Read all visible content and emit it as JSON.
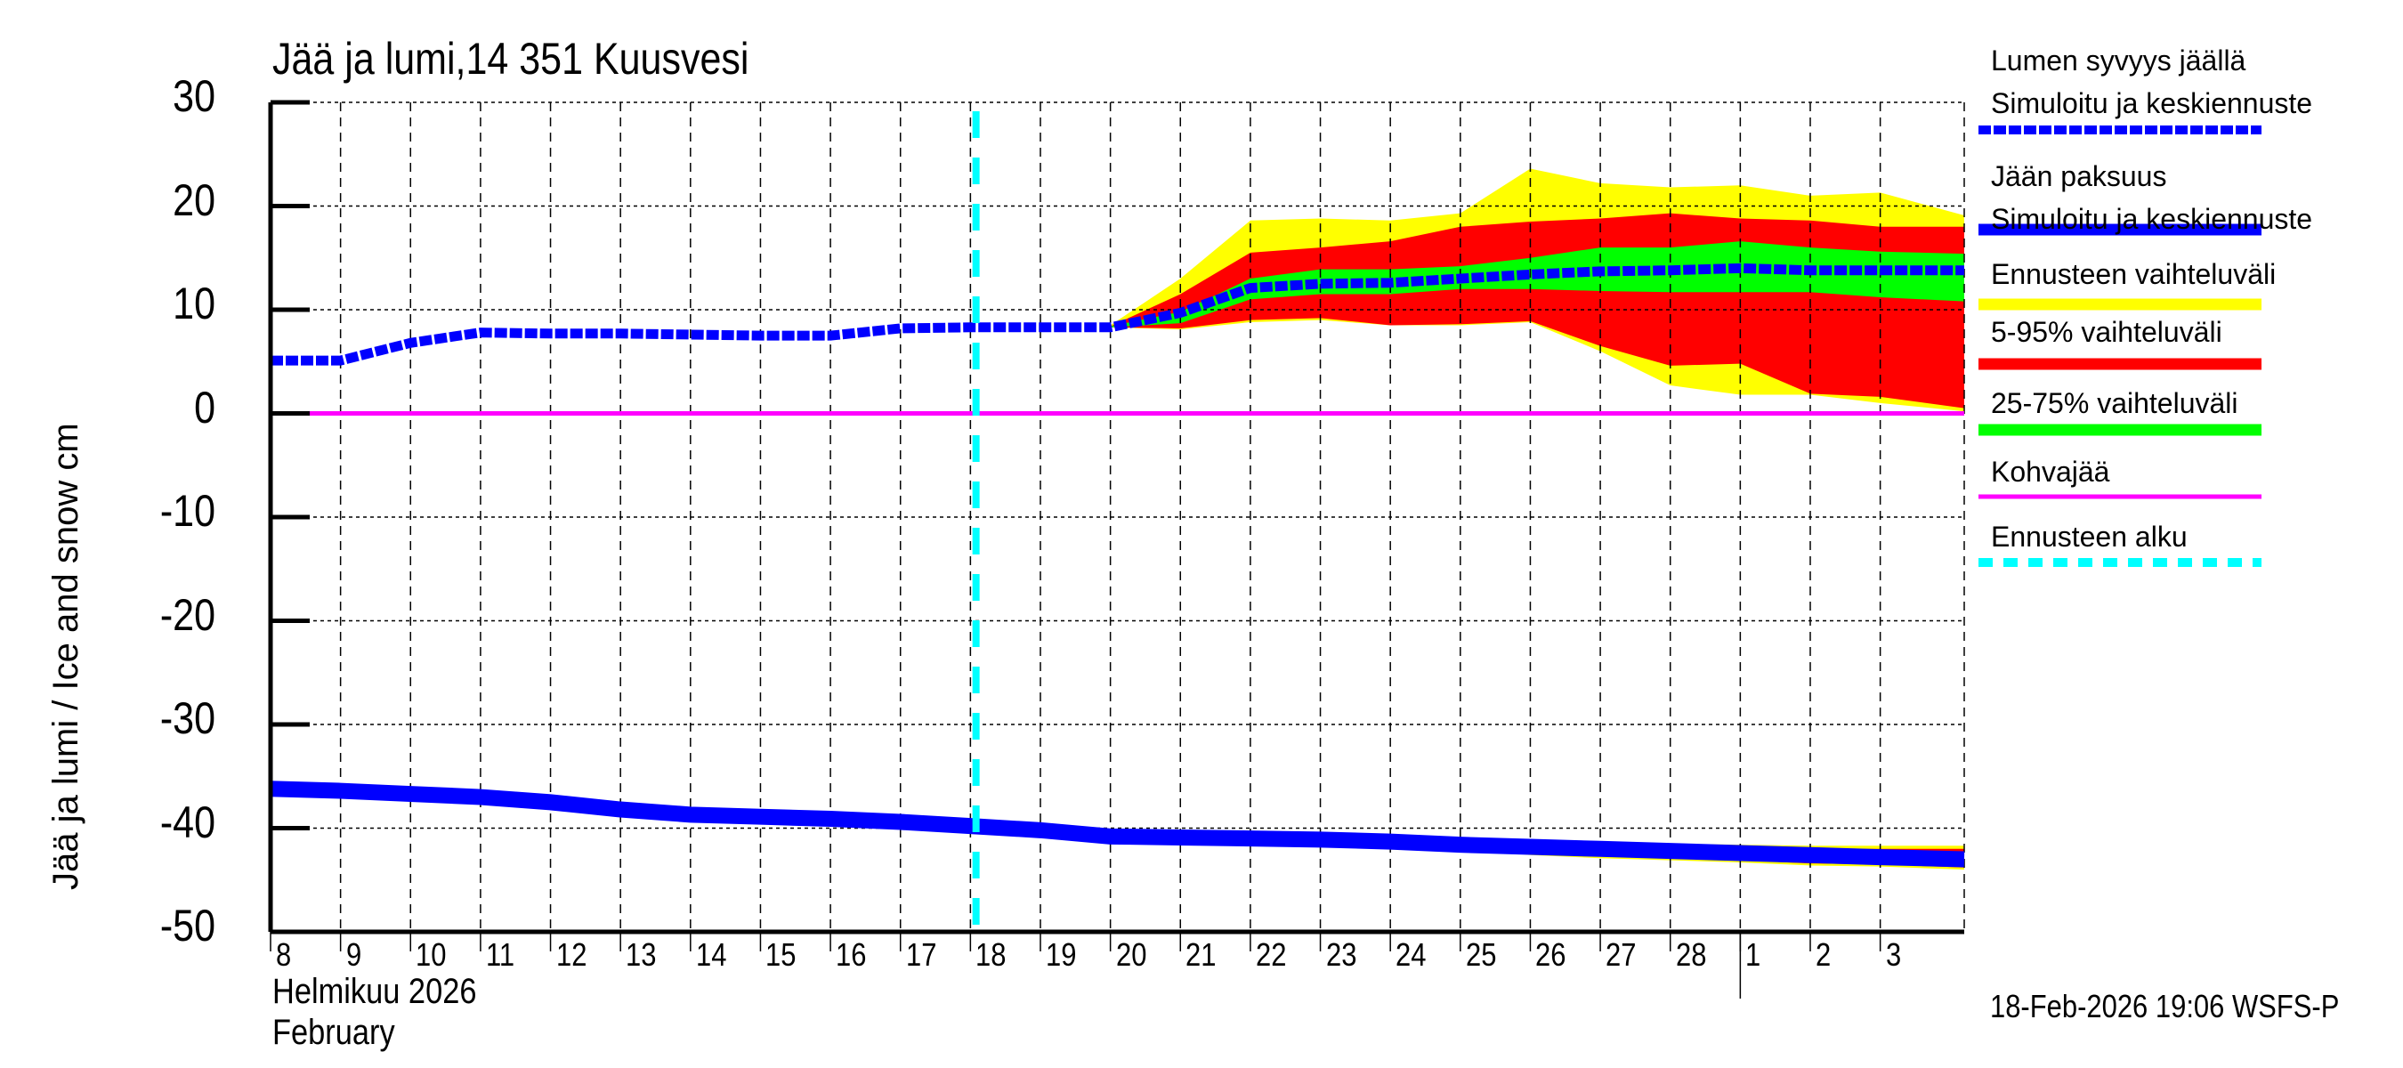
{
  "title": "Jää ja lumi,14 351 Kuusvesi",
  "y_axis_label": "Jää ja lumi / Ice and snow    cm",
  "month_label_fi": "Helmikuu  2026",
  "month_label_en": "February",
  "timestamp": "18-Feb-2026 19:06 WSFS-P",
  "colors": {
    "snow": "#0000ff",
    "ice": "#0000ff",
    "range_full": "#ffff00",
    "range_5_95": "#ff0000",
    "range_25_75": "#00ff00",
    "slush": "#ff00ff",
    "forecast_start": "#00ffff",
    "grid": "#000000"
  },
  "legend": [
    {
      "line1": "Lumen syvyys jäällä",
      "line2": "Simuloitu ja keskiennuste",
      "style": "dotted",
      "color": "#0000ff"
    },
    {
      "line1": "Jään paksuus",
      "line2": "Simuloitu ja keskiennuste",
      "style": "solid",
      "color": "#0000ff"
    },
    {
      "line1": "Ennusteen vaihteluväli",
      "style": "solid",
      "color": "#ffff00"
    },
    {
      "line1": "5-95% vaihteluväli",
      "style": "solid",
      "color": "#ff0000"
    },
    {
      "line1": "25-75% vaihteluväli",
      "style": "solid",
      "color": "#00ff00"
    },
    {
      "line1": "Kohvajää",
      "style": "thin",
      "color": "#ff00ff"
    },
    {
      "line1": "Ennusteen alku",
      "style": "dashed",
      "color": "#00ffff"
    }
  ],
  "chart_data": {
    "type": "area",
    "title": "Jää ja lumi,14 351 Kuusvesi",
    "xlabel": "Helmikuu 2026 / February",
    "ylabel": "Jää ja lumi / Ice and snow cm",
    "ylim": [
      -50,
      30
    ],
    "yticks": [
      30,
      20,
      10,
      0,
      -10,
      -20,
      -30,
      -40,
      -50
    ],
    "xlim_days": [
      0,
      24.2
    ],
    "x_tick_labels": [
      "8",
      "9",
      "10",
      "11",
      "12",
      "13",
      "14",
      "15",
      "16",
      "17",
      "18",
      "19",
      "20",
      "21",
      "22",
      "23",
      "24",
      "25",
      "26",
      "27",
      "28",
      "1",
      "2",
      "3"
    ],
    "grid": true,
    "legend_position": "right",
    "forecast_start_day": 10.08,
    "month_divider_day": 21,
    "series": [
      {
        "name": "Lumen syvyys jäällä – Simuloitu ja keskiennuste",
        "style": "dotted",
        "x": [
          0,
          1,
          2,
          3,
          4,
          5,
          6,
          7,
          8,
          9,
          10,
          11,
          12,
          13,
          14,
          15,
          16,
          17,
          18,
          19,
          20,
          21,
          22,
          23,
          24.2
        ],
        "values": [
          5.1,
          5.1,
          6.8,
          7.8,
          7.7,
          7.7,
          7.6,
          7.5,
          7.5,
          8.2,
          8.3,
          8.3,
          8.3,
          9.7,
          12.1,
          12.5,
          12.6,
          13.0,
          13.4,
          13.7,
          13.8,
          14.0,
          13.8,
          13.8,
          13.8
        ]
      },
      {
        "name": "Jään paksuus – Simuloitu ja keskiennuste",
        "style": "solid",
        "x": [
          0,
          1,
          2,
          3,
          4,
          5,
          6,
          7,
          8,
          9,
          10,
          11,
          12,
          13,
          14,
          15,
          16,
          17,
          18,
          19,
          20,
          21,
          22,
          23,
          24.2
        ],
        "values": [
          -36.2,
          -36.4,
          -36.7,
          -37.0,
          -37.5,
          -38.2,
          -38.7,
          -38.9,
          -39.1,
          -39.4,
          -39.8,
          -40.2,
          -40.8,
          -40.9,
          -41.0,
          -41.1,
          -41.3,
          -41.6,
          -41.8,
          -42.0,
          -42.2,
          -42.4,
          -42.6,
          -42.8,
          -43.0
        ]
      },
      {
        "name": "Kohvajää",
        "style": "solid",
        "x": [
          0,
          24.2
        ],
        "values": [
          0,
          0
        ]
      }
    ],
    "bands_snow": {
      "x": [
        12,
        13,
        14,
        15,
        16,
        17,
        18,
        19,
        20,
        21,
        22,
        23,
        24.2
      ],
      "full_low": [
        8.3,
        8.1,
        8.8,
        9.0,
        8.5,
        8.5,
        8.8,
        6.0,
        2.7,
        1.8,
        1.8,
        1.0,
        0.2
      ],
      "full_high": [
        8.5,
        13.0,
        18.6,
        18.8,
        18.6,
        19.3,
        23.6,
        22.2,
        21.8,
        22.0,
        21.0,
        21.3,
        19.1
      ],
      "p5": [
        8.3,
        8.2,
        9.0,
        9.2,
        8.5,
        8.6,
        8.9,
        6.5,
        4.6,
        4.8,
        1.9,
        1.6,
        0.5
      ],
      "p95": [
        8.4,
        11.5,
        15.5,
        16.0,
        16.6,
        18.0,
        18.5,
        18.8,
        19.3,
        18.8,
        18.6,
        18.0,
        18.0
      ],
      "p25": [
        8.3,
        8.7,
        11.0,
        11.5,
        11.5,
        12.0,
        12.0,
        11.8,
        11.7,
        11.7,
        11.7,
        11.2,
        10.8
      ],
      "p75": [
        8.4,
        9.8,
        13.0,
        13.9,
        13.9,
        14.2,
        15.0,
        16.0,
        16.0,
        16.6,
        16.0,
        15.6,
        15.4
      ]
    },
    "bands_ice": {
      "x": [
        16,
        17,
        18,
        19,
        20,
        21,
        22,
        23,
        24.2
      ],
      "full_low": [
        -41.4,
        -42.0,
        -42.6,
        -42.9,
        -43.1,
        -43.3,
        -43.6,
        -43.7,
        -44.0
      ],
      "full_high": [
        -41.2,
        -41.3,
        -41.3,
        -41.4,
        -41.5,
        -41.6,
        -41.7,
        -41.7,
        -41.7
      ],
      "p5": [
        -41.4,
        -41.9,
        -42.4,
        -42.7,
        -42.9,
        -43.1,
        -43.4,
        -43.5,
        -43.8
      ],
      "p95": [
        -41.2,
        -41.4,
        -41.5,
        -41.6,
        -41.8,
        -41.9,
        -42.0,
        -42.0,
        -42.0
      ]
    }
  }
}
